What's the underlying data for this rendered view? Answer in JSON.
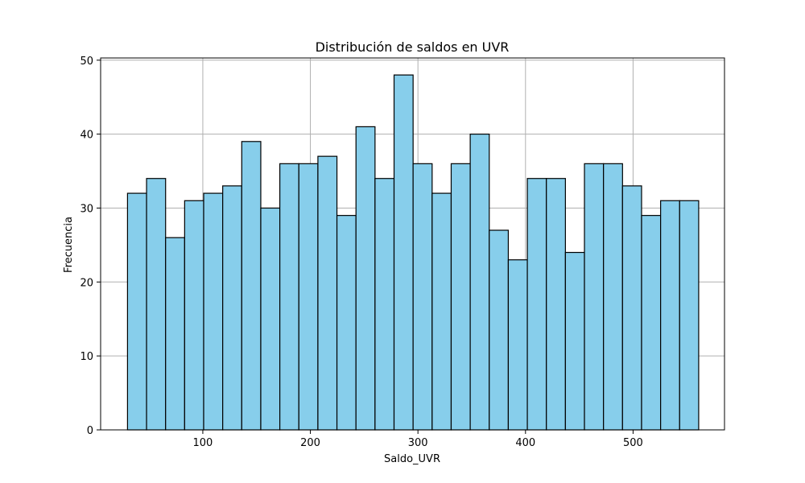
{
  "chart_data": {
    "type": "bar",
    "title": "Distribución de saldos en UVR",
    "xlabel": "Saldo_UVR",
    "ylabel": "Frecuencia",
    "xlim": [
      5,
      585
    ],
    "ylim": [
      0,
      50.3
    ],
    "xticks": [
      100,
      200,
      300,
      400,
      500
    ],
    "yticks": [
      0,
      10,
      20,
      30,
      40,
      50
    ],
    "bin_start": 30,
    "bin_width": 17.7,
    "values": [
      32,
      34,
      26,
      31,
      32,
      33,
      39,
      30,
      36,
      36,
      37,
      29,
      41,
      34,
      48,
      36,
      32,
      36,
      40,
      27,
      23,
      34,
      34,
      24,
      36,
      36,
      33,
      29,
      31,
      31
    ],
    "grid": true,
    "colors": {
      "bar_fill": "#87ceeb",
      "bar_edge": "#000000",
      "grid": "#b0b0b0"
    }
  }
}
